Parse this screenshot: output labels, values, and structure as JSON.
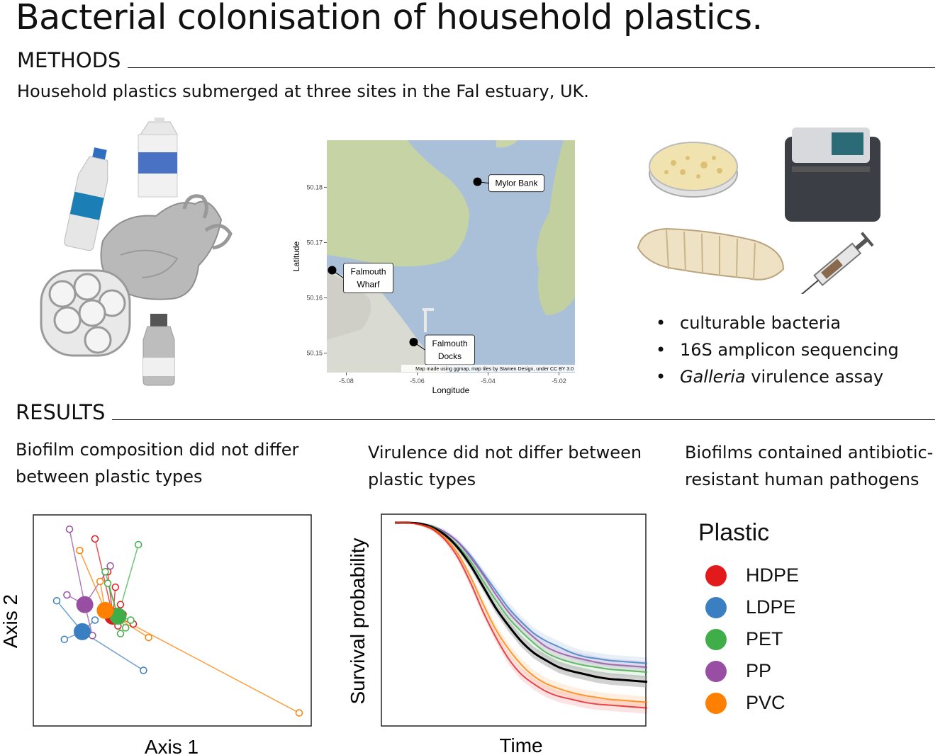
{
  "title": "Bacterial colonisation of household plastics.",
  "methods": {
    "heading": "METHODS",
    "text": "Household plastics submerged at three sites in the Fal estuary, UK."
  },
  "map": {
    "ylabel": "Latitude",
    "xlabel": "Longitude",
    "yticks": [
      "50.18",
      "50.17",
      "50.16",
      "50.15"
    ],
    "xticks": [
      "-5.08",
      "-5.06",
      "-5.04",
      "-5.02"
    ],
    "sites": [
      {
        "label": "Mylor Bank",
        "lon": -5.043,
        "lat": 50.181
      },
      {
        "label": "Falmouth\nWharf",
        "lon": -5.084,
        "lat": 50.165
      },
      {
        "label": "Falmouth\nDocks",
        "lon": -5.061,
        "lat": 50.152
      }
    ],
    "credit": "Map made using ggmap, map tiles by Stamen Design, under CC BY 3.0"
  },
  "methods_list": [
    {
      "text": "culturable bacteria",
      "italic": ""
    },
    {
      "text": "16S amplicon sequencing",
      "italic": ""
    },
    {
      "text": " virulence assay",
      "italic": "Galleria"
    }
  ],
  "results": {
    "heading": "RESULTS",
    "caption1": "Biofilm composition did not differ between plastic types",
    "caption2": "Virulence did not differ between plastic types",
    "caption3": "Biofilms contained antibiotic-resistant human pathogens"
  },
  "colors": {
    "HDPE": "#e31a1c",
    "LDPE": "#3a7fc1",
    "PET": "#3fae49",
    "PP": "#984ea3",
    "PVC": "#ff7f00"
  },
  "legend": {
    "title": "Plastic",
    "items": [
      "HDPE",
      "LDPE",
      "PET",
      "PP",
      "PVC"
    ]
  },
  "chart_data": [
    {
      "type": "scatter",
      "title": "",
      "xlabel": "Axis 1",
      "ylabel": "Axis 2",
      "xlim": [
        0,
        100
      ],
      "ylim": [
        0,
        100
      ],
      "series": [
        {
          "name": "HDPE",
          "centroid": [
            27,
            52
          ],
          "points": [
            [
              20,
              92
            ],
            [
              25,
              75
            ],
            [
              28,
              67
            ],
            [
              30,
              58
            ],
            [
              31,
              53
            ],
            [
              29,
              47
            ],
            [
              35,
              48
            ]
          ]
        },
        {
          "name": "LDPE",
          "centroid": [
            15,
            44
          ],
          "points": [
            [
              5,
              60
            ],
            [
              8,
              40
            ],
            [
              20,
              50
            ],
            [
              39,
              24
            ]
          ]
        },
        {
          "name": "PET",
          "centroid": [
            29,
            52
          ],
          "points": [
            [
              37,
              89
            ],
            [
              24,
              75
            ],
            [
              25,
              69
            ],
            [
              34,
              50
            ],
            [
              32,
              46
            ],
            [
              30,
              43
            ]
          ]
        },
        {
          "name": "PP",
          "centroid": [
            16,
            58
          ],
          "points": [
            [
              10,
              97
            ],
            [
              26,
              78
            ],
            [
              9,
              63
            ],
            [
              19,
              42
            ]
          ]
        },
        {
          "name": "PVC",
          "centroid": [
            24,
            55
          ],
          "points": [
            [
              14,
              86
            ],
            [
              22,
              70
            ],
            [
              41,
              41
            ],
            [
              100,
              2
            ]
          ]
        }
      ]
    },
    {
      "type": "line",
      "title": "",
      "xlabel": "Time",
      "ylabel": "Survival probability",
      "xlim": [
        0,
        1
      ],
      "ylim": [
        0,
        1
      ],
      "x": [
        0,
        0.05,
        0.1,
        0.15,
        0.2,
        0.25,
        0.3,
        0.35,
        0.4,
        0.45,
        0.5,
        0.55,
        0.6,
        0.65,
        0.7,
        0.75,
        0.8,
        0.85,
        0.9,
        0.95,
        1
      ],
      "series": [
        {
          "name": "LDPE",
          "values": [
            1,
            1,
            0.995,
            0.98,
            0.95,
            0.9,
            0.83,
            0.74,
            0.65,
            0.56,
            0.49,
            0.43,
            0.39,
            0.36,
            0.33,
            0.31,
            0.3,
            0.29,
            0.285,
            0.28,
            0.275
          ]
        },
        {
          "name": "PP",
          "values": [
            1,
            1,
            0.995,
            0.98,
            0.95,
            0.9,
            0.82,
            0.73,
            0.63,
            0.54,
            0.47,
            0.41,
            0.36,
            0.33,
            0.31,
            0.295,
            0.28,
            0.27,
            0.265,
            0.26,
            0.255
          ]
        },
        {
          "name": "PET",
          "values": [
            1,
            1,
            0.995,
            0.98,
            0.94,
            0.88,
            0.8,
            0.7,
            0.6,
            0.51,
            0.44,
            0.38,
            0.33,
            0.3,
            0.28,
            0.265,
            0.255,
            0.245,
            0.24,
            0.235,
            0.23
          ]
        },
        {
          "name": "overall",
          "values": [
            1,
            1,
            0.995,
            0.975,
            0.935,
            0.87,
            0.78,
            0.67,
            0.56,
            0.47,
            0.39,
            0.33,
            0.29,
            0.255,
            0.235,
            0.22,
            0.205,
            0.195,
            0.19,
            0.185,
            0.18
          ]
        },
        {
          "name": "PVC",
          "values": [
            1,
            1,
            0.99,
            0.97,
            0.92,
            0.84,
            0.72,
            0.58,
            0.45,
            0.35,
            0.27,
            0.21,
            0.17,
            0.145,
            0.125,
            0.11,
            0.1,
            0.09,
            0.085,
            0.08,
            0.075
          ]
        },
        {
          "name": "HDPE",
          "values": [
            1,
            1,
            0.99,
            0.965,
            0.91,
            0.82,
            0.69,
            0.54,
            0.41,
            0.3,
            0.22,
            0.17,
            0.13,
            0.105,
            0.09,
            0.075,
            0.065,
            0.06,
            0.055,
            0.05,
            0.045
          ]
        }
      ]
    }
  ]
}
